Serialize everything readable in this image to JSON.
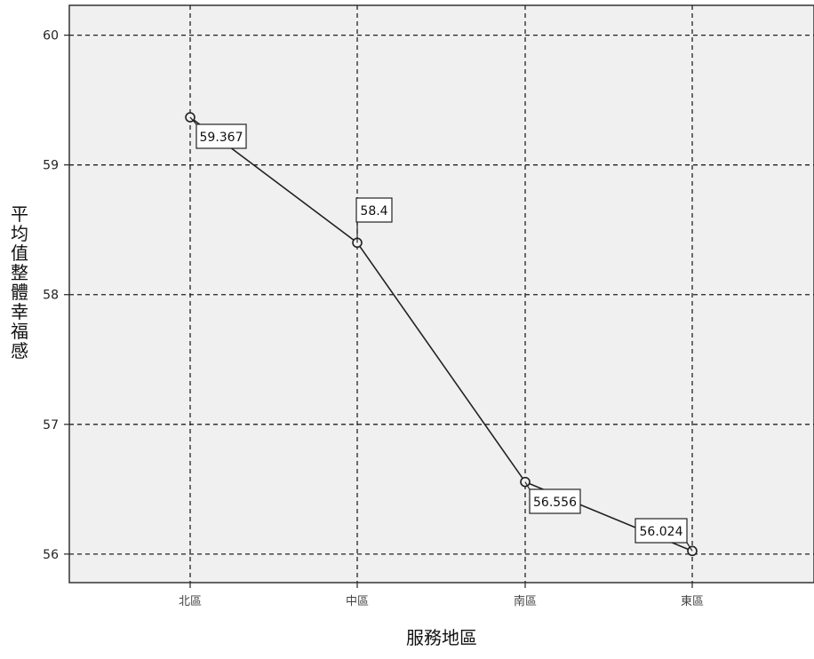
{
  "chart_data": {
    "type": "line",
    "categories": [
      "北區",
      "中區",
      "南區",
      "東區"
    ],
    "series": [
      {
        "values": [
          59.367,
          58.4,
          56.556,
          56.024
        ]
      }
    ],
    "data_labels": [
      "59.367",
      "58.4",
      "56.556",
      "56.024"
    ],
    "xlabel": "服務地區",
    "ylabel": "平均值整體幸福感",
    "ylim": [
      55.78,
      60.23
    ],
    "yticks": [
      56,
      57,
      58,
      59,
      60
    ],
    "grid": true,
    "grid_style": "dashed",
    "legend": "none",
    "colors": {
      "plot_background": "#f0f0f0",
      "line": "#222222",
      "grid": "#222222",
      "marker_fill": "#f0f0f0"
    }
  }
}
